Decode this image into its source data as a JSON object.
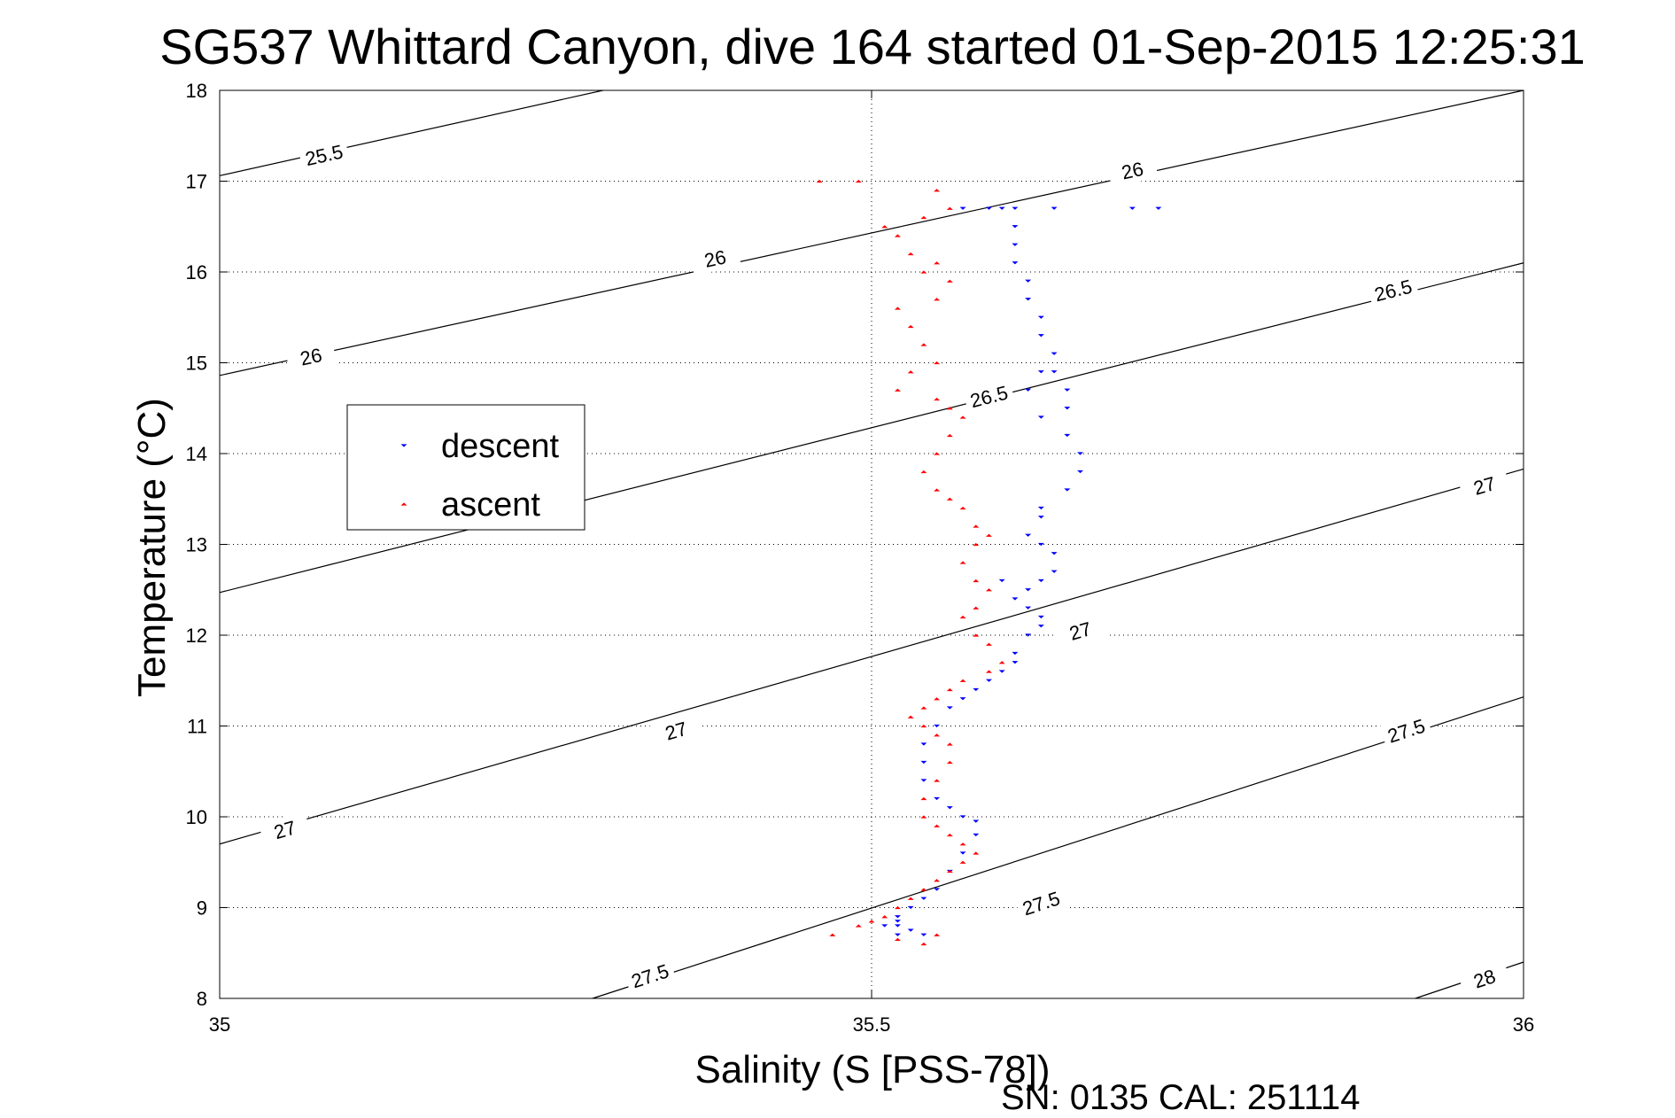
{
  "chart_data": {
    "type": "scatter",
    "title": "SG537 Whittard Canyon, dive 164 started 01-Sep-2015 12:25:31",
    "xlabel": "Salinity (S [PSS-78])",
    "ylabel": "Temperature (°C)",
    "footer": "SN: 0135  CAL: 251114",
    "xlim": [
      35,
      36
    ],
    "ylim": [
      8,
      18
    ],
    "xticks": [
      35,
      35.5,
      36
    ],
    "xtick_labels": [
      "35",
      "35.5",
      "36"
    ],
    "yticks": [
      8,
      9,
      10,
      11,
      12,
      13,
      14,
      15,
      16,
      17,
      18
    ],
    "ytick_labels": [
      "8",
      "9",
      "10",
      "11",
      "12",
      "13",
      "14",
      "15",
      "16",
      "17",
      "18"
    ],
    "grid": true,
    "legend_position": "left",
    "series": [
      {
        "name": "descent",
        "marker": "down-triangle",
        "color": "#0000ff",
        "x": [
          35.57,
          35.59,
          35.6,
          35.61,
          35.64,
          35.7,
          35.72,
          35.61,
          35.61,
          35.61,
          35.62,
          35.62,
          35.63,
          35.63,
          35.64,
          35.64,
          35.65,
          35.65,
          35.63,
          35.62,
          35.63,
          35.65,
          35.66,
          35.66,
          35.65,
          35.63,
          35.63,
          35.62,
          35.63,
          35.64,
          35.64,
          35.63,
          35.62,
          35.6,
          35.61,
          35.62,
          35.63,
          35.63,
          35.62,
          35.61,
          35.61,
          35.6,
          35.59,
          35.58,
          35.57,
          35.56,
          35.55,
          35.54,
          35.54,
          35.54,
          35.55,
          35.56,
          35.57,
          35.58,
          35.58,
          35.57,
          35.56,
          35.55,
          35.54,
          35.53,
          35.52,
          35.52,
          35.53,
          35.54,
          35.52,
          35.51,
          35.52
        ],
        "y": [
          16.7,
          16.7,
          16.7,
          16.7,
          16.7,
          16.7,
          16.7,
          16.5,
          16.3,
          16.1,
          15.9,
          15.7,
          15.5,
          15.3,
          15.1,
          14.9,
          14.7,
          14.5,
          14.9,
          14.7,
          14.4,
          14.2,
          14.0,
          13.8,
          13.6,
          13.4,
          13.3,
          13.1,
          13.0,
          12.9,
          12.7,
          12.6,
          12.5,
          12.6,
          12.4,
          12.3,
          12.2,
          12.1,
          12.0,
          11.8,
          11.7,
          11.6,
          11.5,
          11.4,
          11.3,
          11.2,
          11.0,
          10.8,
          10.6,
          10.4,
          10.2,
          10.1,
          10.0,
          9.95,
          9.8,
          9.6,
          9.4,
          9.2,
          9.1,
          9.0,
          8.9,
          8.8,
          8.75,
          8.7,
          8.85,
          8.8,
          8.7
        ]
      },
      {
        "name": "ascent",
        "marker": "up-triangle",
        "color": "#ff0000",
        "x": [
          35.46,
          35.49,
          35.55,
          35.56,
          35.54,
          35.51,
          35.52,
          35.53,
          35.54,
          35.55,
          35.56,
          35.55,
          35.52,
          35.53,
          35.54,
          35.55,
          35.53,
          35.52,
          35.55,
          35.56,
          35.57,
          35.56,
          35.55,
          35.54,
          35.55,
          35.56,
          35.57,
          35.58,
          35.59,
          35.58,
          35.57,
          35.58,
          35.59,
          35.58,
          35.57,
          35.58,
          35.59,
          35.6,
          35.59,
          35.57,
          35.56,
          35.55,
          35.54,
          35.53,
          35.54,
          35.55,
          35.56,
          35.56,
          35.55,
          35.54,
          35.54,
          35.55,
          35.56,
          35.57,
          35.58,
          35.57,
          35.56,
          35.55,
          35.54,
          35.53,
          35.52,
          35.51,
          35.5,
          35.49,
          35.47,
          35.52,
          35.55,
          35.54
        ],
        "y": [
          17.0,
          17.0,
          16.9,
          16.7,
          16.6,
          16.5,
          16.4,
          16.2,
          16.0,
          16.1,
          15.9,
          15.7,
          15.6,
          15.4,
          15.2,
          15.0,
          14.9,
          14.7,
          14.6,
          14.5,
          14.4,
          14.2,
          14.0,
          13.8,
          13.6,
          13.5,
          13.4,
          13.2,
          13.1,
          13.0,
          12.8,
          12.6,
          12.5,
          12.3,
          12.2,
          12.0,
          11.9,
          11.7,
          11.6,
          11.5,
          11.4,
          11.3,
          11.2,
          11.1,
          11.0,
          10.9,
          10.8,
          10.6,
          10.4,
          10.2,
          10.0,
          9.9,
          9.8,
          9.7,
          9.6,
          9.5,
          9.4,
          9.3,
          9.2,
          9.1,
          9.0,
          8.9,
          8.85,
          8.8,
          8.7,
          8.65,
          8.7,
          8.6
        ]
      }
    ],
    "contours": [
      {
        "label": "25.5",
        "line": [
          [
            35.0,
            17.06
          ],
          [
            35.294,
            18.0
          ]
        ],
        "label_points": [
          [
            35.08,
            17.29
          ]
        ]
      },
      {
        "label": "26",
        "line": [
          [
            35.0,
            14.86
          ],
          [
            36.0,
            18.0
          ]
        ],
        "label_points": [
          [
            35.07,
            15.07
          ],
          [
            35.38,
            16.15
          ],
          [
            35.7,
            17.12
          ]
        ]
      },
      {
        "label": "26.5",
        "line": [
          [
            35.0,
            12.47
          ],
          [
            36.0,
            16.1
          ]
        ],
        "label_points": [
          [
            35.59,
            14.63
          ],
          [
            35.9,
            15.8
          ]
        ]
      },
      {
        "label": "27",
        "line": [
          [
            35.0,
            9.7
          ],
          [
            36.0,
            13.83
          ]
        ],
        "label_points": [
          [
            35.05,
            9.86
          ],
          [
            35.35,
            10.95
          ],
          [
            35.66,
            12.05
          ],
          [
            35.97,
            13.65
          ]
        ]
      },
      {
        "label": "27.5",
        "line": [
          [
            35.286,
            8.0
          ],
          [
            36.0,
            11.32
          ]
        ],
        "label_points": [
          [
            35.33,
            8.25
          ],
          [
            35.63,
            9.05
          ],
          [
            35.91,
            10.95
          ]
        ]
      },
      {
        "label": "28",
        "line": [
          [
            35.917,
            8.0
          ],
          [
            36.0,
            8.4
          ]
        ],
        "label_points": [
          [
            35.97,
            8.22
          ]
        ]
      }
    ]
  }
}
